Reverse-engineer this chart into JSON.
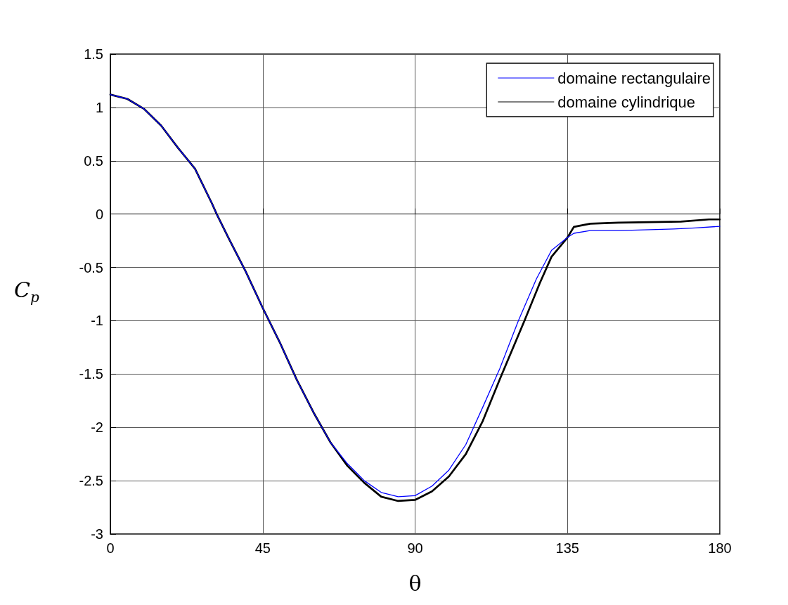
{
  "chart_data": {
    "type": "line",
    "xlabel": "θ",
    "ylabel": "C$_{p}$",
    "xlim": [
      0,
      180
    ],
    "xticks": [
      0,
      45,
      90,
      135,
      180
    ],
    "ylim": [
      -3,
      1.5
    ],
    "yticks": [
      -3,
      -2.5,
      -2,
      -1.5,
      -1,
      -0.5,
      0,
      0.5,
      1,
      1.5
    ],
    "grid": true,
    "legend": "top right",
    "marker": "none",
    "line_style": "solid",
    "series": [
      {
        "name": "domaine rectangulaire",
        "color": "#0000ff",
        "x": [
          0,
          5,
          10,
          15,
          20,
          25,
          30,
          31.4,
          35,
          40,
          45,
          50,
          55,
          60,
          65,
          70,
          75,
          80,
          85,
          90,
          95,
          100,
          105,
          110,
          115,
          120.5,
          125.8,
          130.3,
          135,
          136.9,
          141.7,
          150.6,
          166.4,
          172.8,
          180
        ],
        "values": [
          1.12,
          1.08,
          0.985,
          0.83,
          0.62,
          0.425,
          0.1,
          0,
          -0.23,
          -0.54,
          -0.88,
          -1.2,
          -1.55,
          -1.86,
          -2.14,
          -2.34,
          -2.5,
          -2.61,
          -2.65,
          -2.64,
          -2.55,
          -2.4,
          -2.16,
          -1.81,
          -1.45,
          -1.0,
          -0.61,
          -0.34,
          -0.22,
          -0.18,
          -0.155,
          -0.155,
          -0.14,
          -0.13,
          -0.115
        ]
      },
      {
        "name": "domaine cylindrique",
        "color": "#000000",
        "x": [
          0,
          5,
          10,
          15,
          20,
          25,
          30,
          31.4,
          35,
          40,
          45,
          50,
          55,
          60,
          65,
          70,
          75,
          80,
          85,
          90,
          95,
          100,
          105,
          110,
          115,
          122.3,
          126.8,
          130.3,
          135,
          136.9,
          141.7,
          150,
          168.5,
          176.8,
          180
        ],
        "values": [
          1.12,
          1.08,
          0.985,
          0.83,
          0.62,
          0.425,
          0.1,
          0,
          -0.23,
          -0.54,
          -0.88,
          -1.2,
          -1.55,
          -1.86,
          -2.14,
          -2.36,
          -2.52,
          -2.65,
          -2.69,
          -2.68,
          -2.6,
          -2.46,
          -2.25,
          -1.94,
          -1.55,
          -1.0,
          -0.65,
          -0.4,
          -0.22,
          -0.12,
          -0.09,
          -0.08,
          -0.07,
          -0.05,
          -0.05
        ]
      }
    ]
  }
}
